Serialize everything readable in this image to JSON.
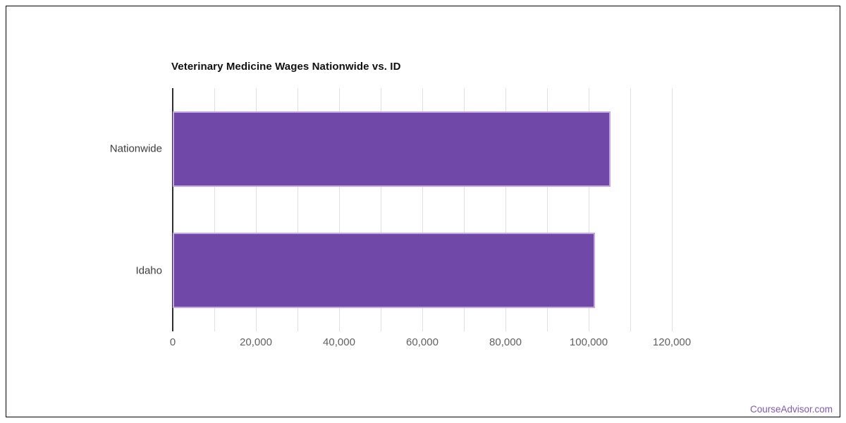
{
  "page": {
    "footer_link": "CourseAdvisor.com"
  },
  "chart_data": {
    "type": "bar",
    "orientation": "horizontal",
    "title": "Veterinary Medicine Wages Nationwide vs. ID",
    "categories": [
      "Nationwide",
      "Idaho"
    ],
    "values": [
      105250,
      101500
    ],
    "xlabel": "",
    "ylabel": "",
    "xlim": [
      0,
      120000
    ],
    "x_minor_step": 10000,
    "x_major_ticks": [
      0,
      20000,
      40000,
      60000,
      80000,
      100000,
      120000
    ],
    "x_tick_labels": [
      "0",
      "20,000",
      "40,000",
      "60,000",
      "80,000",
      "100,000",
      "120,000"
    ],
    "grid": "vertical-minor-every-10000",
    "legend": false,
    "data_labels": false,
    "colors": {
      "bar_fill": "#7049a8",
      "bar_stroke": "#c3a6e2",
      "gridline": "#e0e0e0",
      "axis_line": "#2e2e2e",
      "tick_label": "#616161",
      "category_label": "#3d3d3d",
      "title": "#111111",
      "footer": "#7e57c2",
      "page_border": "#000000"
    }
  }
}
